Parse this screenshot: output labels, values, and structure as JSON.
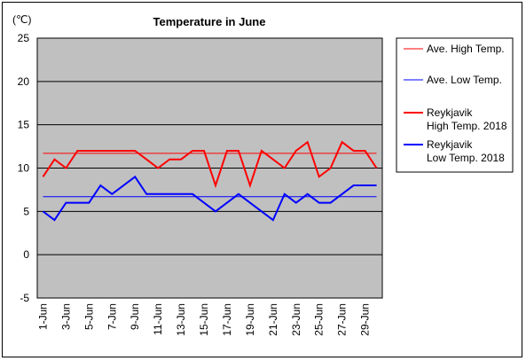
{
  "chart_data": {
    "type": "line",
    "title": "Temperature in June",
    "unit_label": "(℃)",
    "ylim": [
      -5,
      25
    ],
    "y_ticks": [
      25,
      20,
      15,
      10,
      5,
      0,
      -5
    ],
    "x": [
      "1-Jun",
      "2-Jun",
      "3-Jun",
      "4-Jun",
      "5-Jun",
      "6-Jun",
      "7-Jun",
      "8-Jun",
      "9-Jun",
      "10-Jun",
      "11-Jun",
      "12-Jun",
      "13-Jun",
      "14-Jun",
      "15-Jun",
      "16-Jun",
      "17-Jun",
      "18-Jun",
      "19-Jun",
      "20-Jun",
      "21-Jun",
      "22-Jun",
      "23-Jun",
      "24-Jun",
      "25-Jun",
      "26-Jun",
      "27-Jun",
      "28-Jun",
      "29-Jun",
      "30-Jun"
    ],
    "x_tick_labels": [
      "1-Jun",
      "",
      "3-Jun",
      "",
      "5-Jun",
      "",
      "7-Jun",
      "",
      "9-Jun",
      "",
      "11-Jun",
      "",
      "13-Jun",
      "",
      "15-Jun",
      "",
      "17-Jun",
      "",
      "19-Jun",
      "",
      "21-Jun",
      "",
      "23-Jun",
      "",
      "25-Jun",
      "",
      "27-Jun",
      "",
      "29-Jun",
      ""
    ],
    "grid": true,
    "legend_position": "right",
    "plot_background": "#c0c0c0",
    "series": [
      {
        "name": "Ave. High Temp.",
        "color": "#ff0000",
        "style": "thin",
        "values": [
          11.7,
          11.7,
          11.7,
          11.7,
          11.7,
          11.7,
          11.7,
          11.7,
          11.7,
          11.7,
          11.7,
          11.7,
          11.7,
          11.7,
          11.7,
          11.7,
          11.7,
          11.7,
          11.7,
          11.7,
          11.7,
          11.7,
          11.7,
          11.7,
          11.7,
          11.7,
          11.7,
          11.7,
          11.7,
          11.7
        ]
      },
      {
        "name": "Ave. Low Temp.",
        "color": "#0000ff",
        "style": "thin",
        "values": [
          6.7,
          6.7,
          6.7,
          6.7,
          6.7,
          6.7,
          6.7,
          6.7,
          6.7,
          6.7,
          6.7,
          6.7,
          6.7,
          6.7,
          6.7,
          6.7,
          6.7,
          6.7,
          6.7,
          6.7,
          6.7,
          6.7,
          6.7,
          6.7,
          6.7,
          6.7,
          6.7,
          6.7,
          6.7,
          6.7
        ]
      },
      {
        "name": "Reykjavik\nHigh Temp. 2018",
        "color": "#ff0000",
        "style": "thick",
        "values": [
          9,
          11,
          10,
          12,
          12,
          12,
          12,
          12,
          12,
          11,
          10,
          11,
          11,
          12,
          12,
          8,
          12,
          12,
          8,
          12,
          11,
          10,
          12,
          13,
          9,
          10,
          13,
          12,
          12,
          10
        ]
      },
      {
        "name": "Reykjavik\nLow Temp. 2018",
        "color": "#0000ff",
        "style": "thick",
        "values": [
          5,
          4,
          6,
          6,
          6,
          8,
          7,
          8,
          9,
          7,
          7,
          7,
          7,
          7,
          6,
          5,
          6,
          7,
          6,
          5,
          4,
          7,
          6,
          7,
          6,
          6,
          7,
          8,
          8,
          8
        ]
      }
    ]
  }
}
